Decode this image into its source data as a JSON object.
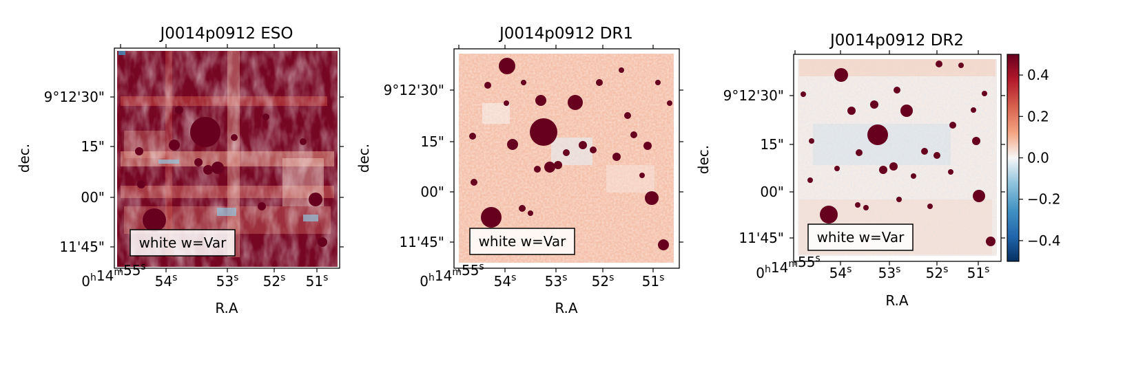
{
  "chart_data": [
    {
      "type": "heatmap",
      "title": "J0014p0912 ESO",
      "xlabel": "R.A",
      "ylabel": "dec.",
      "x_ticks": [
        "0h14m55s",
        "54s",
        "53s",
        "52s",
        "51s"
      ],
      "y_ticks": [
        "9°12'30\"",
        "15\"",
        "00\"",
        "11'45\""
      ],
      "annotation": "white w=Var",
      "background_level": "high"
    },
    {
      "type": "heatmap",
      "title": "J0014p0912 DR1",
      "xlabel": "R.A",
      "ylabel": "dec.",
      "x_ticks": [
        "0h14m55s",
        "54s",
        "53s",
        "52s",
        "51s"
      ],
      "y_ticks": [
        "9°12'30\"",
        "15\"",
        "00\"",
        "11'45\""
      ],
      "annotation": "white w=Var",
      "background_level": "medium"
    },
    {
      "type": "heatmap",
      "title": "J0014p0912 DR2",
      "xlabel": "R.A",
      "ylabel": "dec.",
      "x_ticks": [
        "0h14m55s",
        "54s",
        "53s",
        "52s",
        "51s"
      ],
      "y_ticks": [
        "9°12'30\"",
        "15\"",
        "00\"",
        "11'45\""
      ],
      "annotation": "white w=Var",
      "background_level": "low",
      "colorbar": {
        "range": [
          -0.5,
          0.5
        ],
        "ticks": [
          0.4,
          0.2,
          0.0,
          -0.2,
          -0.4
        ],
        "tick_labels": [
          "0.4",
          "0.2",
          "0.0",
          "−0.2",
          "−0.4"
        ],
        "colormap": "RdBu_r"
      }
    }
  ],
  "colors": {
    "saturated_red": "#67001f",
    "red_mid": "#c94741",
    "pink": "#f4a582",
    "white": "#f7f7f7",
    "light_blue": "#92c5de",
    "deep_blue": "#053061"
  }
}
